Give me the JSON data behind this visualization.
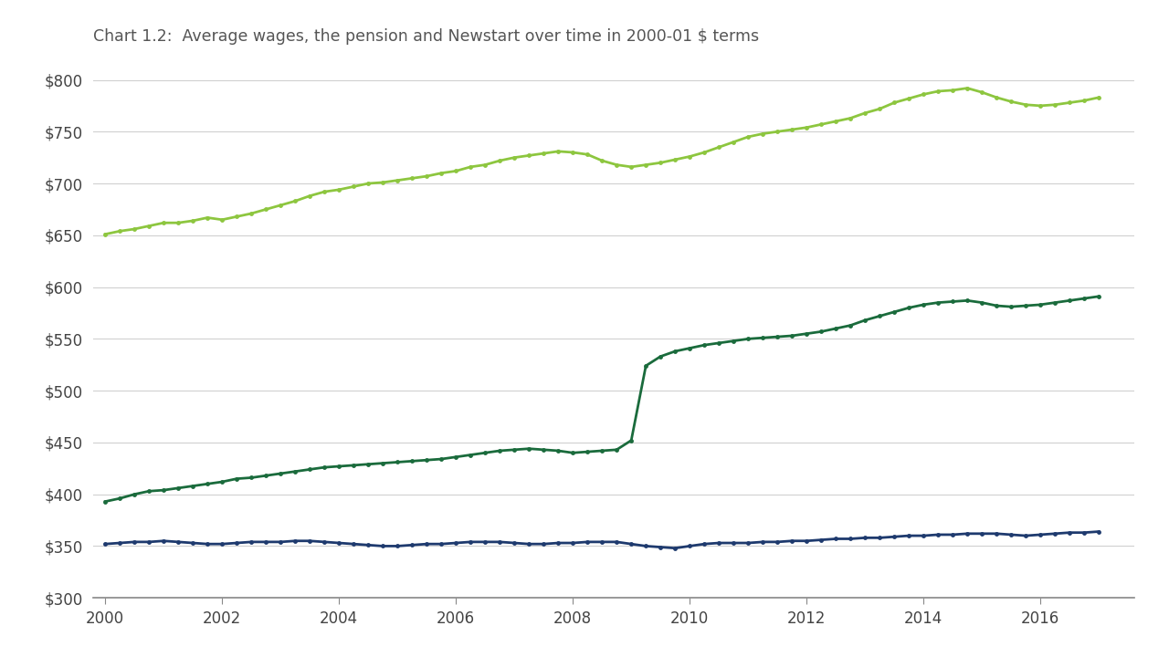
{
  "title": "Chart 1.2:  Average wages, the pension and Newstart over time in 2000-01 $ terms",
  "bg_color": "#ffffff",
  "plot_bg_color": "#ffffff",
  "avg_wages_color": "#8dc63f",
  "pension_color": "#1a6b3c",
  "newstart_color": "#1e3a6e",
  "ylim": [
    300,
    820
  ],
  "yticks": [
    300,
    350,
    400,
    450,
    500,
    550,
    600,
    650,
    700,
    750,
    800
  ],
  "xlim": [
    1999.8,
    2017.6
  ],
  "xticks": [
    2000,
    2002,
    2004,
    2006,
    2008,
    2010,
    2012,
    2014,
    2016
  ],
  "avg_wages": {
    "x": [
      2000.0,
      2000.25,
      2000.5,
      2000.75,
      2001.0,
      2001.25,
      2001.5,
      2001.75,
      2002.0,
      2002.25,
      2002.5,
      2002.75,
      2003.0,
      2003.25,
      2003.5,
      2003.75,
      2004.0,
      2004.25,
      2004.5,
      2004.75,
      2005.0,
      2005.25,
      2005.5,
      2005.75,
      2006.0,
      2006.25,
      2006.5,
      2006.75,
      2007.0,
      2007.25,
      2007.5,
      2007.75,
      2008.0,
      2008.25,
      2008.5,
      2008.75,
      2009.0,
      2009.25,
      2009.5,
      2009.75,
      2010.0,
      2010.25,
      2010.5,
      2010.75,
      2011.0,
      2011.25,
      2011.5,
      2011.75,
      2012.0,
      2012.25,
      2012.5,
      2012.75,
      2013.0,
      2013.25,
      2013.5,
      2013.75,
      2014.0,
      2014.25,
      2014.5,
      2014.75,
      2015.0,
      2015.25,
      2015.5,
      2015.75,
      2016.0,
      2016.25,
      2016.5,
      2016.75,
      2017.0
    ],
    "y": [
      651,
      654,
      656,
      659,
      662,
      662,
      664,
      667,
      665,
      668,
      671,
      675,
      679,
      683,
      688,
      692,
      694,
      697,
      700,
      701,
      703,
      705,
      707,
      710,
      712,
      716,
      718,
      722,
      725,
      727,
      729,
      731,
      730,
      728,
      722,
      718,
      716,
      718,
      720,
      723,
      726,
      730,
      735,
      740,
      745,
      748,
      750,
      752,
      754,
      757,
      760,
      763,
      768,
      772,
      778,
      782,
      786,
      789,
      790,
      792,
      788,
      783,
      779,
      776,
      775,
      776,
      778,
      780,
      783
    ]
  },
  "pension": {
    "x": [
      2000.0,
      2000.25,
      2000.5,
      2000.75,
      2001.0,
      2001.25,
      2001.5,
      2001.75,
      2002.0,
      2002.25,
      2002.5,
      2002.75,
      2003.0,
      2003.25,
      2003.5,
      2003.75,
      2004.0,
      2004.25,
      2004.5,
      2004.75,
      2005.0,
      2005.25,
      2005.5,
      2005.75,
      2006.0,
      2006.25,
      2006.5,
      2006.75,
      2007.0,
      2007.25,
      2007.5,
      2007.75,
      2008.0,
      2008.25,
      2008.5,
      2008.75,
      2009.0,
      2009.25,
      2009.5,
      2009.75,
      2010.0,
      2010.25,
      2010.5,
      2010.75,
      2011.0,
      2011.25,
      2011.5,
      2011.75,
      2012.0,
      2012.25,
      2012.5,
      2012.75,
      2013.0,
      2013.25,
      2013.5,
      2013.75,
      2014.0,
      2014.25,
      2014.5,
      2014.75,
      2015.0,
      2015.25,
      2015.5,
      2015.75,
      2016.0,
      2016.25,
      2016.5,
      2016.75,
      2017.0
    ],
    "y": [
      393,
      396,
      400,
      403,
      404,
      406,
      408,
      410,
      412,
      415,
      416,
      418,
      420,
      422,
      424,
      426,
      427,
      428,
      429,
      430,
      431,
      432,
      433,
      434,
      436,
      438,
      440,
      442,
      443,
      444,
      443,
      442,
      440,
      441,
      442,
      443,
      452,
      524,
      533,
      538,
      541,
      544,
      546,
      548,
      550,
      551,
      552,
      553,
      555,
      557,
      560,
      563,
      568,
      572,
      576,
      580,
      583,
      585,
      586,
      587,
      585,
      582,
      581,
      582,
      583,
      585,
      587,
      589,
      591
    ]
  },
  "newstart": {
    "x": [
      2000.0,
      2000.25,
      2000.5,
      2000.75,
      2001.0,
      2001.25,
      2001.5,
      2001.75,
      2002.0,
      2002.25,
      2002.5,
      2002.75,
      2003.0,
      2003.25,
      2003.5,
      2003.75,
      2004.0,
      2004.25,
      2004.5,
      2004.75,
      2005.0,
      2005.25,
      2005.5,
      2005.75,
      2006.0,
      2006.25,
      2006.5,
      2006.75,
      2007.0,
      2007.25,
      2007.5,
      2007.75,
      2008.0,
      2008.25,
      2008.5,
      2008.75,
      2009.0,
      2009.25,
      2009.5,
      2009.75,
      2010.0,
      2010.25,
      2010.5,
      2010.75,
      2011.0,
      2011.25,
      2011.5,
      2011.75,
      2012.0,
      2012.25,
      2012.5,
      2012.75,
      2013.0,
      2013.25,
      2013.5,
      2013.75,
      2014.0,
      2014.25,
      2014.5,
      2014.75,
      2015.0,
      2015.25,
      2015.5,
      2015.75,
      2016.0,
      2016.25,
      2016.5,
      2016.75,
      2017.0
    ],
    "y": [
      352,
      353,
      354,
      354,
      355,
      354,
      353,
      352,
      352,
      353,
      354,
      354,
      354,
      355,
      355,
      354,
      353,
      352,
      351,
      350,
      350,
      351,
      352,
      352,
      353,
      354,
      354,
      354,
      353,
      352,
      352,
      353,
      353,
      354,
      354,
      354,
      352,
      350,
      349,
      348,
      350,
      352,
      353,
      353,
      353,
      354,
      354,
      355,
      355,
      356,
      357,
      357,
      358,
      358,
      359,
      360,
      360,
      361,
      361,
      362,
      362,
      362,
      361,
      360,
      361,
      362,
      363,
      363,
      364
    ]
  }
}
